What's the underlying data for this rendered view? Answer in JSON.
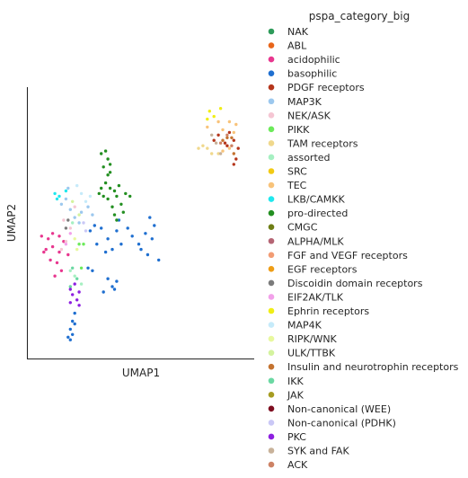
{
  "chart_data": {
    "type": "scatter",
    "xlabel": "UMAP1",
    "ylabel": "UMAP2",
    "xlim": [
      0,
      10
    ],
    "ylim": [
      0,
      10
    ],
    "grid": false,
    "legend_title": "pspa_category_big",
    "legend_position": "right",
    "series": [
      {
        "name": "NAK",
        "color": "#2e9b5a",
        "points": []
      },
      {
        "name": "ABL",
        "color": "#e8651a",
        "points": []
      },
      {
        "name": "acidophilic",
        "color": "#e8378f",
        "points": [
          [
            0.5,
            4.5
          ],
          [
            0.8,
            4.4
          ],
          [
            1.0,
            4.6
          ],
          [
            1.3,
            4.5
          ],
          [
            0.7,
            4.0
          ],
          [
            1.0,
            4.1
          ],
          [
            1.3,
            3.9
          ],
          [
            0.9,
            3.6
          ],
          [
            1.2,
            3.5
          ],
          [
            1.4,
            3.2
          ],
          [
            1.1,
            3.0
          ],
          [
            0.6,
            3.9
          ],
          [
            1.5,
            4.3
          ],
          [
            1.7,
            3.8
          ]
        ]
      },
      {
        "name": "basophilic",
        "color": "#1f6fd0",
        "points": [
          [
            2.7,
            4.7
          ],
          [
            2.9,
            4.9
          ],
          [
            3.2,
            4.8
          ],
          [
            3.5,
            4.4
          ],
          [
            3.9,
            4.7
          ],
          [
            4.0,
            5.1
          ],
          [
            3.7,
            4.0
          ],
          [
            4.1,
            4.2
          ],
          [
            3.4,
            3.9
          ],
          [
            4.6,
            4.5
          ],
          [
            4.9,
            4.2
          ],
          [
            5.2,
            4.6
          ],
          [
            5.5,
            4.4
          ],
          [
            5.3,
            3.8
          ],
          [
            5.8,
            3.6
          ],
          [
            5.0,
            4.0
          ],
          [
            5.6,
            4.9
          ],
          [
            5.4,
            5.2
          ],
          [
            4.4,
            4.8
          ],
          [
            3.0,
            4.2
          ],
          [
            2.8,
            3.2
          ],
          [
            3.5,
            2.9
          ],
          [
            3.9,
            2.8
          ],
          [
            3.7,
            2.6
          ],
          [
            2.6,
            3.3
          ],
          [
            1.8,
            1.0
          ],
          [
            1.9,
            1.3
          ],
          [
            1.8,
            0.6
          ],
          [
            2.0,
            1.6
          ],
          [
            1.9,
            0.8
          ],
          [
            1.7,
            0.7
          ],
          [
            2.0,
            1.2
          ],
          [
            3.3,
            2.4
          ],
          [
            3.8,
            2.5
          ]
        ]
      },
      {
        "name": "PDGF receptors",
        "color": "#b5361c",
        "points": [
          [
            8.3,
            8.1
          ],
          [
            8.5,
            8.3
          ],
          [
            8.8,
            8.0
          ],
          [
            9.0,
            8.4
          ],
          [
            9.2,
            8.1
          ],
          [
            9.4,
            7.8
          ],
          [
            9.3,
            7.4
          ],
          [
            9.2,
            7.2
          ],
          [
            8.9,
            7.9
          ]
        ]
      },
      {
        "name": "MAP3K",
        "color": "#9cc8ee",
        "points": [
          [
            1.4,
            5.7
          ],
          [
            1.6,
            5.9
          ],
          [
            1.8,
            5.5
          ],
          [
            2.0,
            5.2
          ],
          [
            2.3,
            5.4
          ],
          [
            2.6,
            5.6
          ],
          [
            2.8,
            5.3
          ],
          [
            1.7,
            6.3
          ],
          [
            2.2,
            5.0
          ]
        ]
      },
      {
        "name": "NEK/ASK",
        "color": "#f5c6d3",
        "points": [
          [
            1.5,
            5.1
          ],
          [
            1.8,
            4.8
          ],
          [
            1.6,
            4.3
          ],
          [
            2.0,
            5.6
          ],
          [
            1.4,
            4.0
          ]
        ]
      },
      {
        "name": "PIKK",
        "color": "#6cea5a",
        "points": [
          [
            2.2,
            4.2
          ],
          [
            2.4,
            4.2
          ],
          [
            2.3,
            3.3
          ]
        ]
      },
      {
        "name": "TAM receptors",
        "color": "#f0d88c",
        "points": [
          [
            7.6,
            7.8
          ],
          [
            7.8,
            7.9
          ],
          [
            8.0,
            7.8
          ],
          [
            8.2,
            7.6
          ],
          [
            8.5,
            7.6
          ]
        ]
      },
      {
        "name": "assorted",
        "color": "#a6f0c2",
        "points": [
          [
            1.8,
            3.2
          ],
          [
            2.0,
            3.0
          ],
          [
            2.3,
            2.7
          ],
          [
            1.9,
            5.0
          ]
        ]
      },
      {
        "name": "SRC",
        "color": "#f2ca14",
        "points": []
      },
      {
        "name": "TEC",
        "color": "#f8c37a",
        "points": [
          [
            8.0,
            8.6
          ],
          [
            8.5,
            8.8
          ],
          [
            8.7,
            8.5
          ],
          [
            9.0,
            8.8
          ],
          [
            9.2,
            8.4
          ],
          [
            9.3,
            8.7
          ],
          [
            8.7,
            7.7
          ],
          [
            9.0,
            7.8
          ]
        ]
      },
      {
        "name": "LKB/CAMKK",
        "color": "#20e8ee",
        "points": [
          [
            1.1,
            6.1
          ],
          [
            1.3,
            6.0
          ],
          [
            1.6,
            6.2
          ],
          [
            1.2,
            5.9
          ]
        ]
      },
      {
        "name": "pro-directed",
        "color": "#238f21",
        "points": [
          [
            3.2,
            7.6
          ],
          [
            3.4,
            7.7
          ],
          [
            3.5,
            7.4
          ],
          [
            3.3,
            7.1
          ],
          [
            3.6,
            6.9
          ],
          [
            3.4,
            6.5
          ],
          [
            3.6,
            6.3
          ],
          [
            3.3,
            6.0
          ],
          [
            3.8,
            6.2
          ],
          [
            3.5,
            6.8
          ],
          [
            3.9,
            6.0
          ],
          [
            4.1,
            5.7
          ],
          [
            4.3,
            6.1
          ],
          [
            4.2,
            5.4
          ],
          [
            3.8,
            5.3
          ],
          [
            3.7,
            5.6
          ],
          [
            3.2,
            6.3
          ],
          [
            4.5,
            6.0
          ],
          [
            3.5,
            5.9
          ],
          [
            3.1,
            6.1
          ],
          [
            4.0,
            6.4
          ],
          [
            3.9,
            5.1
          ],
          [
            3.6,
            7.2
          ]
        ]
      },
      {
        "name": "CMGC",
        "color": "#6e7e15",
        "points": []
      },
      {
        "name": "ALPHA/MLK",
        "color": "#b56574",
        "points": []
      },
      {
        "name": "FGF and VEGF receptors",
        "color": "#f29c74",
        "points": []
      },
      {
        "name": "EGF receptors",
        "color": "#ee9d16",
        "points": []
      },
      {
        "name": "Discoidin domain receptors",
        "color": "#7b7b7b",
        "points": [
          [
            1.7,
            5.1
          ],
          [
            1.6,
            4.8
          ]
        ]
      },
      {
        "name": "EIF2AK/TLK",
        "color": "#f2a1ea",
        "points": [
          [
            1.8,
            4.6
          ],
          [
            1.6,
            4.2
          ]
        ]
      },
      {
        "name": "Ephrin receptors",
        "color": "#f0ee16",
        "points": [
          [
            8.1,
            9.2
          ],
          [
            8.3,
            9.0
          ],
          [
            8.6,
            9.3
          ],
          [
            8.0,
            8.9
          ]
        ]
      },
      {
        "name": "MAP4K",
        "color": "#c6ebfa",
        "points": [
          [
            2.3,
            6.1
          ],
          [
            2.5,
            5.8
          ],
          [
            2.1,
            6.4
          ],
          [
            2.7,
            6.0
          ]
        ]
      },
      {
        "name": "RIPK/WNK",
        "color": "#e8f89e",
        "points": [
          [
            2.0,
            4.4
          ],
          [
            2.1,
            4.0
          ]
        ]
      },
      {
        "name": "ULK/TTBK",
        "color": "#d4f39e",
        "points": [
          [
            1.9,
            5.8
          ],
          [
            2.2,
            5.3
          ]
        ]
      },
      {
        "name": "Insulin and neurotrophin receptors",
        "color": "#c47330",
        "points": [
          [
            8.7,
            8.1
          ],
          [
            8.9,
            8.2
          ],
          [
            9.1,
            8.2
          ],
          [
            9.2,
            7.6
          ]
        ]
      },
      {
        "name": "IKK",
        "color": "#6bd8a3",
        "points": [
          [
            1.9,
            3.3
          ],
          [
            2.1,
            2.9
          ],
          [
            1.8,
            2.6
          ]
        ]
      },
      {
        "name": "JAK",
        "color": "#a69c22",
        "points": []
      },
      {
        "name": "Non-canonical (WEE)",
        "color": "#7e0e20",
        "points": []
      },
      {
        "name": "Non-canonical (PDHK)",
        "color": "#cac8f6",
        "points": [
          [
            2.4,
            5.0
          ],
          [
            2.5,
            4.7
          ]
        ]
      },
      {
        "name": "PKC",
        "color": "#8d1fe0",
        "points": [
          [
            1.8,
            2.5
          ],
          [
            2.0,
            2.7
          ],
          [
            2.2,
            2.4
          ],
          [
            1.9,
            2.3
          ],
          [
            2.1,
            2.1
          ],
          [
            1.8,
            2.0
          ],
          [
            2.2,
            1.9
          ]
        ]
      },
      {
        "name": "SYK and FAK",
        "color": "#c8b29a",
        "points": [
          [
            8.4,
            8.0
          ],
          [
            8.6,
            7.6
          ],
          [
            8.2,
            8.3
          ]
        ]
      },
      {
        "name": "ACK",
        "color": "#cd8265",
        "points": [
          [
            8.6,
            8.0
          ],
          [
            8.9,
            8.3
          ],
          [
            9.1,
            7.9
          ]
        ]
      }
    ]
  }
}
